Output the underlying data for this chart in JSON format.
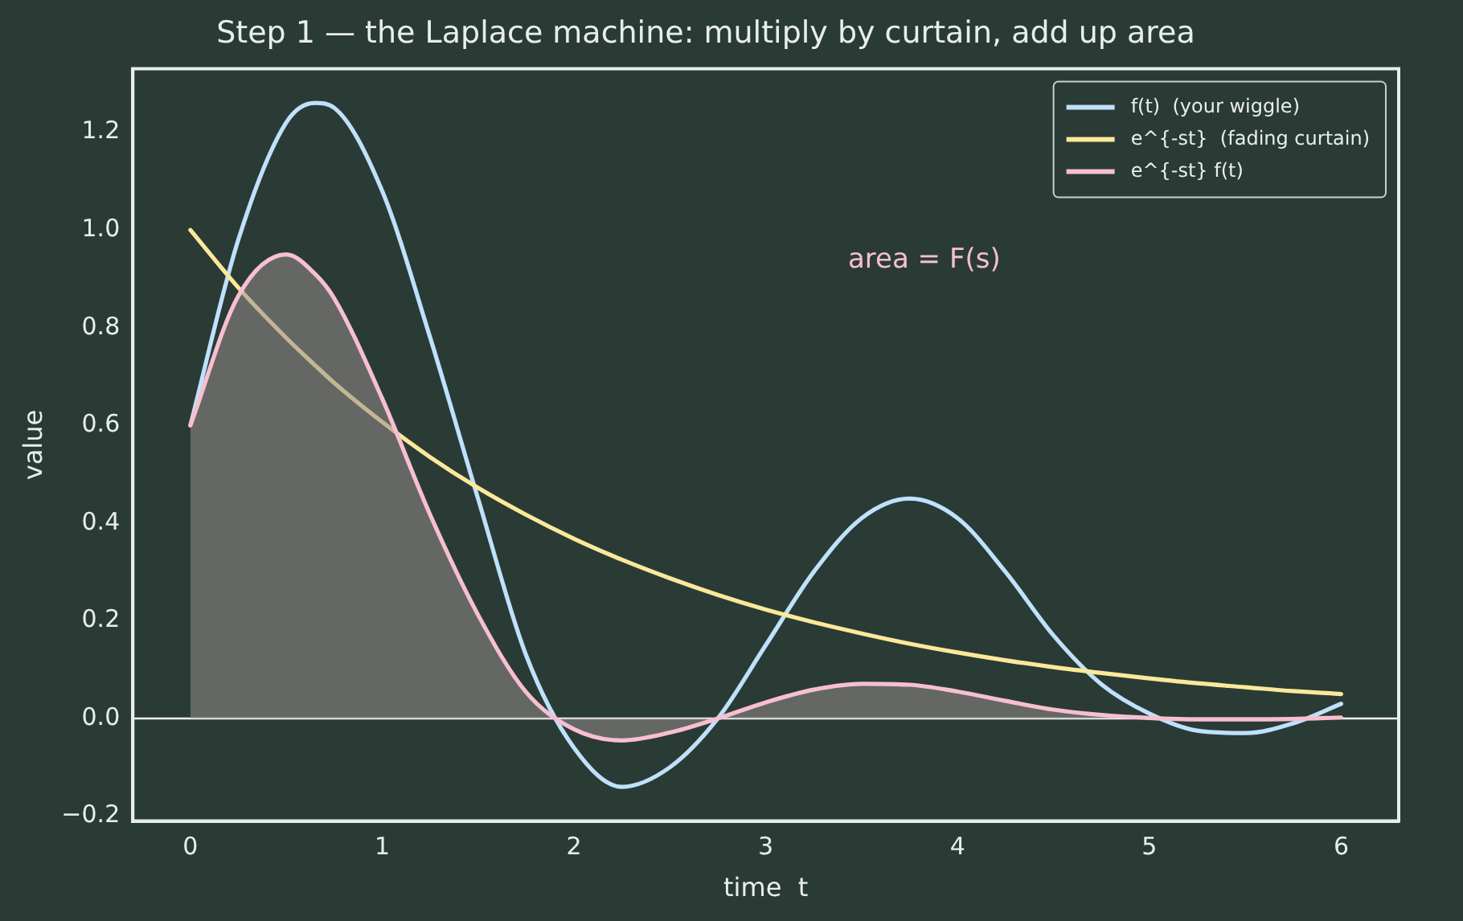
{
  "chart_data": {
    "type": "line",
    "title": "Step 1 — the Laplace machine: multiply by curtain, add up area",
    "xlabel": "time  t",
    "ylabel": "value",
    "x": [
      0,
      0.25,
      0.5,
      0.65,
      0.75,
      1,
      1.25,
      1.5,
      1.75,
      2,
      2.25,
      2.5,
      2.75,
      3,
      3.25,
      3.5,
      3.75,
      4,
      4.25,
      4.5,
      4.75,
      5,
      5.25,
      5.5,
      5.75,
      6
    ],
    "series": [
      {
        "name": "f(t)  (your wiggle)",
        "color": "#bfe1fb",
        "values": [
          0.6,
          0.98,
          1.22,
          1.26,
          1.25,
          1.08,
          0.78,
          0.45,
          0.13,
          -0.06,
          -0.14,
          -0.1,
          0,
          0.15,
          0.3,
          0.41,
          0.45,
          0.41,
          0.3,
          0.17,
          0.07,
          0.01,
          -0.025,
          -0.03,
          -0.01,
          0.03
        ]
      },
      {
        "name": "e^{-st}  (fading curtain)",
        "color": "#fbe89a",
        "values": [
          1,
          0.882,
          0.779,
          0.723,
          0.687,
          0.607,
          0.535,
          0.472,
          0.417,
          0.368,
          0.325,
          0.287,
          0.253,
          0.223,
          0.197,
          0.174,
          0.153,
          0.135,
          0.119,
          0.105,
          0.093,
          0.082,
          0.072,
          0.064,
          0.056,
          0.05
        ]
      },
      {
        "name": "e^{-st} f(t)",
        "type": "area",
        "color": "#f7bfd0",
        "values": [
          0.6,
          0.865,
          0.95,
          0.91,
          0.86,
          0.655,
          0.417,
          0.212,
          0.054,
          -0.022,
          -0.045,
          -0.029,
          0,
          0.033,
          0.059,
          0.071,
          0.069,
          0.055,
          0.036,
          0.018,
          0.007,
          0.001,
          -0.002,
          -0.002,
          -0.001,
          0.002
        ]
      }
    ],
    "xlim": [
      -0.3,
      6.3
    ],
    "xticks": [
      0,
      1,
      2,
      3,
      4,
      5,
      6
    ],
    "ylim": [
      -0.21,
      1.33
    ],
    "yticks": [
      {
        "value": -0.2,
        "label": "−0.2"
      },
      {
        "value": 0,
        "label": "0.0"
      },
      {
        "value": 0.2,
        "label": "0.2"
      },
      {
        "value": 0.4,
        "label": "0.4"
      },
      {
        "value": 0.6,
        "label": "0.6"
      },
      {
        "value": 0.8,
        "label": "0.8"
      },
      {
        "value": 1,
        "label": "1.0"
      },
      {
        "value": 1.2,
        "label": "1.2"
      }
    ],
    "ref_lines": [
      {
        "axis": "y",
        "value": 0,
        "color": "#f0f4f0"
      }
    ],
    "annotations": [
      "area = F(s)"
    ],
    "grid": false,
    "legend": "top right",
    "line_style": "solid",
    "marker": "none"
  }
}
